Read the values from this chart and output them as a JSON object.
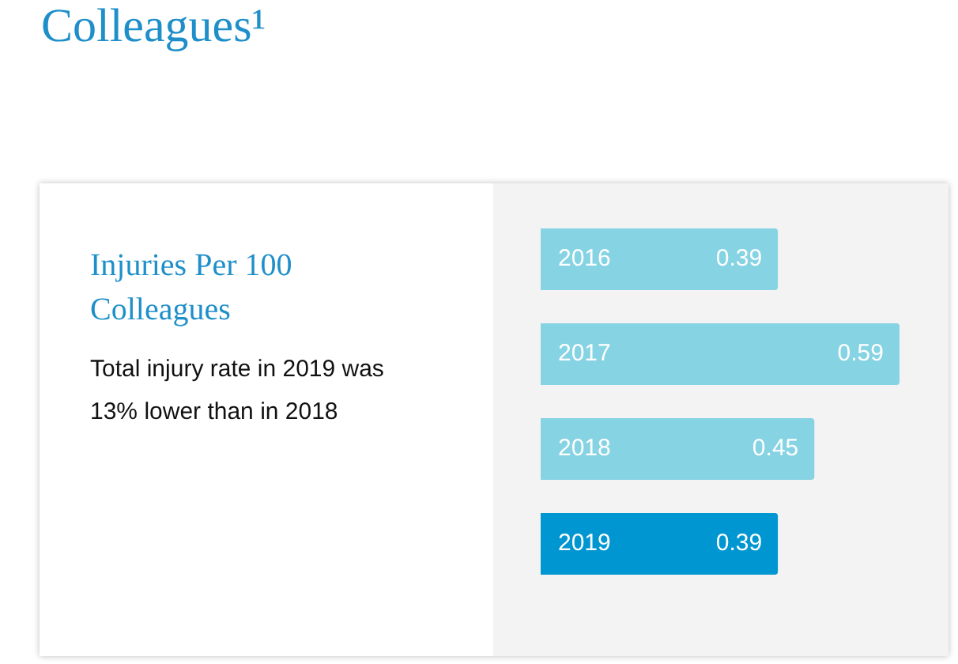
{
  "chart_data": {
    "type": "bar",
    "orientation": "horizontal",
    "title": "Colleagues¹",
    "subtitle": "Injuries Per 100 Colleagues",
    "annotations": [
      "Total injury rate in 2019 was 13% lower than in 2018"
    ],
    "categories": [
      "2016",
      "2017",
      "2018",
      "2019"
    ],
    "values": [
      0.39,
      0.59,
      0.45,
      0.39
    ],
    "colors": [
      "#86d3e3",
      "#86d3e3",
      "#86d3e3",
      "#0096d1"
    ],
    "data_labels": true,
    "legend": false
  }
}
